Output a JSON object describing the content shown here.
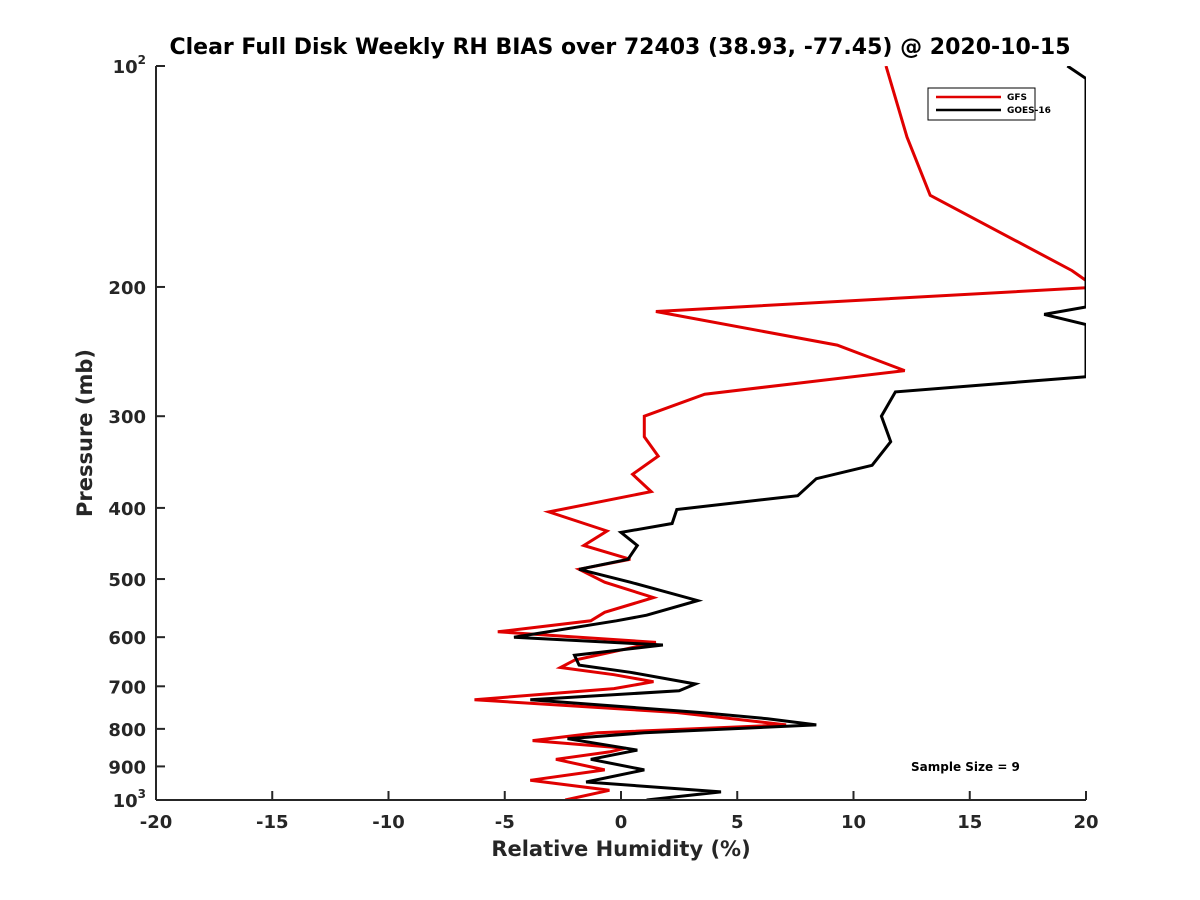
{
  "chart_data": {
    "type": "line",
    "title": "Clear Full Disk Weekly RH BIAS over 72403 (38.93, -77.45) @ 2020-10-15",
    "xlabel": "Relative Humidity (%)",
    "ylabel": "Pressure (mb)",
    "xlim": [
      -20,
      20
    ],
    "ylim": [
      100,
      1000
    ],
    "yscale": "log",
    "y_reversed": true,
    "grid": false,
    "legend_position": "top-right",
    "x_ticks": [
      "-20",
      "-15",
      "-10",
      "-5",
      "0",
      "5",
      "10",
      "15",
      "20"
    ],
    "y_ticks": [
      {
        "value": 100,
        "base": "10",
        "exp": "2"
      },
      {
        "value": 200,
        "text": "200"
      },
      {
        "value": 300,
        "text": "300"
      },
      {
        "value": 400,
        "text": "400"
      },
      {
        "value": 500,
        "text": "500"
      },
      {
        "value": 600,
        "text": "600"
      },
      {
        "value": 700,
        "text": "700"
      },
      {
        "value": 800,
        "text": "800"
      },
      {
        "value": 900,
        "text": "900"
      },
      {
        "value": 1000,
        "base": "10",
        "exp": "3"
      }
    ],
    "annotation": "Sample Size = 9",
    "series": [
      {
        "name": "GFS",
        "color": "#e00000",
        "points": [
          [
            11.4,
            100
          ],
          [
            12.3,
            125
          ],
          [
            13.3,
            150
          ],
          [
            19.4,
            190
          ],
          [
            20.0,
            196
          ],
          [
            20.0,
            200
          ],
          [
            20.0,
            200.5
          ],
          [
            1.5,
            216
          ],
          [
            9.3,
            240
          ],
          [
            12.2,
            260
          ],
          [
            3.6,
            280
          ],
          [
            1.0,
            300
          ],
          [
            1.0,
            320
          ],
          [
            1.6,
            340
          ],
          [
            0.5,
            360
          ],
          [
            1.3,
            380
          ],
          [
            -3.1,
            405
          ],
          [
            -0.6,
            430
          ],
          [
            -1.6,
            450
          ],
          [
            0.4,
            470
          ],
          [
            -1.8,
            485
          ],
          [
            -0.7,
            505
          ],
          [
            1.4,
            530
          ],
          [
            -0.7,
            555
          ],
          [
            -1.3,
            570
          ],
          [
            -5.3,
            590
          ],
          [
            1.5,
            610
          ],
          [
            -2.0,
            645
          ],
          [
            -2.6,
            660
          ],
          [
            -0.3,
            675
          ],
          [
            1.4,
            690
          ],
          [
            -0.3,
            705
          ],
          [
            -6.3,
            730
          ],
          [
            2.4,
            760
          ],
          [
            7.1,
            790
          ],
          [
            -1.0,
            810
          ],
          [
            -3.8,
            830
          ],
          [
            0.2,
            850
          ],
          [
            -0.5,
            860
          ],
          [
            -2.8,
            880
          ],
          [
            -0.7,
            910
          ],
          [
            -3.9,
            940
          ],
          [
            -0.5,
            970
          ],
          [
            -2.4,
            1000
          ]
        ]
      },
      {
        "name": "GOES-16",
        "color": "#000000",
        "points": [
          [
            19.2,
            100
          ],
          [
            20.0,
            104
          ],
          [
            20.0,
            213
          ],
          [
            18.2,
            218
          ],
          [
            20.0,
            225
          ],
          [
            20.0,
            265
          ],
          [
            11.8,
            278
          ],
          [
            11.2,
            300
          ],
          [
            11.6,
            325
          ],
          [
            10.8,
            350
          ],
          [
            8.4,
            365
          ],
          [
            7.6,
            385
          ],
          [
            2.4,
            402
          ],
          [
            2.2,
            420
          ],
          [
            0.0,
            432
          ],
          [
            0.7,
            450
          ],
          [
            0.3,
            470
          ],
          [
            -1.8,
            485
          ],
          [
            0.4,
            505
          ],
          [
            3.3,
            535
          ],
          [
            1.1,
            560
          ],
          [
            -0.2,
            570
          ],
          [
            -4.6,
            600
          ],
          [
            1.8,
            615
          ],
          [
            -2.0,
            635
          ],
          [
            -1.8,
            655
          ],
          [
            0.4,
            670
          ],
          [
            3.2,
            695
          ],
          [
            2.5,
            710
          ],
          [
            -3.9,
            730
          ],
          [
            3.4,
            760
          ],
          [
            6.3,
            775
          ],
          [
            8.4,
            790
          ],
          [
            1.0,
            810
          ],
          [
            -2.3,
            825
          ],
          [
            0.7,
            855
          ],
          [
            -1.3,
            880
          ],
          [
            1.0,
            910
          ],
          [
            -1.5,
            945
          ],
          [
            4.3,
            975
          ],
          [
            1.1,
            1000
          ]
        ]
      }
    ]
  }
}
